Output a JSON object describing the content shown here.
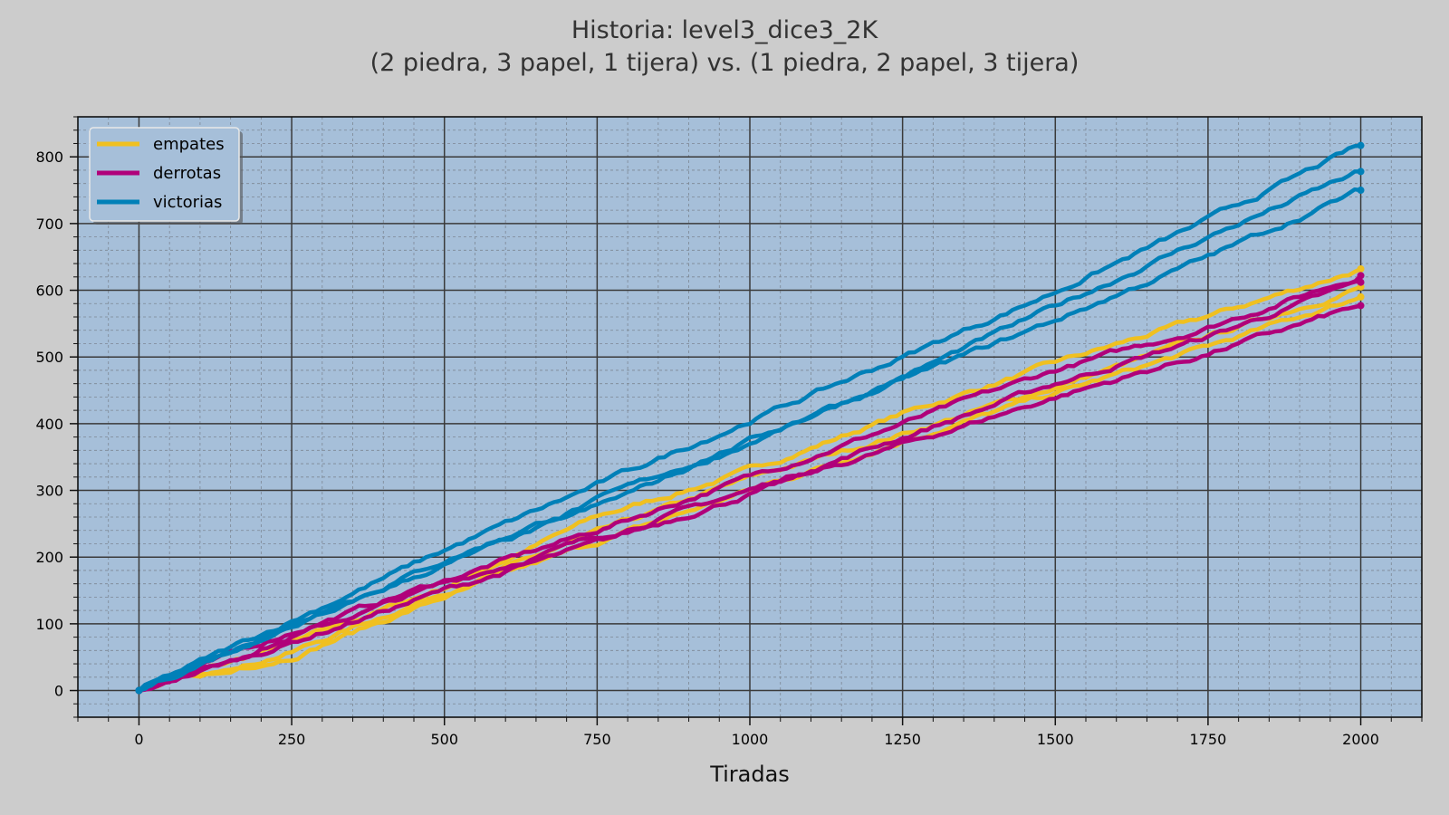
{
  "chart_data": {
    "type": "line",
    "title": "Historia: level3_dice3_2K",
    "subtitle": "(2 piedra, 3 papel, 1 tijera) vs. (1 piedra, 2 papel, 3 tijera)",
    "xlabel": "Tiradas",
    "ylabel": "",
    "xlim": [
      -100,
      2100
    ],
    "ylim": [
      -40,
      860
    ],
    "xticks": [
      0,
      250,
      500,
      750,
      1000,
      1250,
      1500,
      1750,
      2000
    ],
    "yticks": [
      0,
      100,
      200,
      300,
      400,
      500,
      600,
      700,
      800
    ],
    "grid": true,
    "legend_position": "top-left",
    "legend": [
      "empates",
      "derrotas",
      "victorias"
    ],
    "colors": {
      "empates": "#f0c020",
      "derrotas": "#b0007a",
      "victorias": "#0080b8",
      "plot_background": "#a6bfd9",
      "figure_background": "#cccccc"
    },
    "series": [
      {
        "group": "empates",
        "x": [
          0,
          250,
          500,
          750,
          1000,
          1250,
          1500,
          1750,
          2000
        ],
        "y": [
          0,
          70,
          155,
          260,
          330,
          415,
          490,
          560,
          632
        ]
      },
      {
        "group": "empates",
        "x": [
          0,
          250,
          500,
          750,
          1000,
          1250,
          1500,
          1750,
          2000
        ],
        "y": [
          0,
          58,
          148,
          235,
          318,
          385,
          455,
          530,
          605
        ]
      },
      {
        "group": "empates",
        "x": [
          0,
          250,
          500,
          750,
          1000,
          1250,
          1500,
          1750,
          2000
        ],
        "y": [
          0,
          52,
          140,
          222,
          300,
          375,
          445,
          515,
          590
        ]
      },
      {
        "group": "derrotas",
        "x": [
          0,
          250,
          500,
          750,
          1000,
          1250,
          1500,
          1750,
          2000
        ],
        "y": [
          0,
          88,
          165,
          240,
          320,
          400,
          480,
          545,
          622
        ]
      },
      {
        "group": "derrotas",
        "x": [
          0,
          250,
          500,
          750,
          1000,
          1250,
          1500,
          1750,
          2000
        ],
        "y": [
          0,
          80,
          160,
          230,
          300,
          380,
          460,
          530,
          612
        ]
      },
      {
        "group": "derrotas",
        "x": [
          0,
          250,
          500,
          750,
          1000,
          1250,
          1500,
          1750,
          2000
        ],
        "y": [
          0,
          72,
          150,
          220,
          295,
          368,
          440,
          505,
          577
        ]
      },
      {
        "group": "victorias",
        "x": [
          0,
          250,
          500,
          750,
          1000,
          1250,
          1500,
          1750,
          2000
        ],
        "y": [
          0,
          105,
          210,
          308,
          405,
          500,
          598,
          705,
          817
        ]
      },
      {
        "group": "victorias",
        "x": [
          0,
          250,
          500,
          750,
          1000,
          1250,
          1500,
          1750,
          2000
        ],
        "y": [
          0,
          100,
          195,
          285,
          375,
          470,
          575,
          680,
          778
        ]
      },
      {
        "group": "victorias",
        "x": [
          0,
          250,
          500,
          750,
          1000,
          1250,
          1500,
          1750,
          2000
        ],
        "y": [
          0,
          95,
          188,
          275,
          372,
          465,
          555,
          650,
          750
        ]
      }
    ]
  }
}
